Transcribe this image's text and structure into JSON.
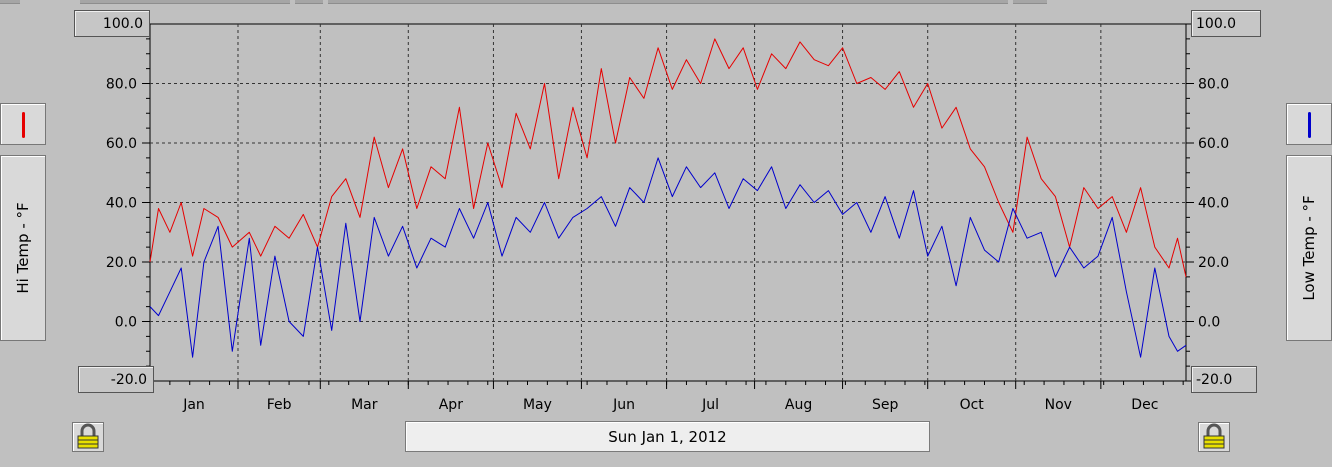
{
  "window": {
    "date_label": "Sun Jan 1, 2012"
  },
  "legend": {
    "left": {
      "label": "Hi Temp - °F",
      "color": "#e60000",
      "icon": "red-line-swatch"
    },
    "right": {
      "label": "Low Temp - °F",
      "color": "#0000cc",
      "icon": "blue-line-swatch"
    }
  },
  "icons": {
    "left_lock": "padlock-icon",
    "right_lock": "padlock-icon"
  },
  "chart_data": {
    "type": "line",
    "y_axis_left": {
      "ylim": [
        -20,
        100
      ],
      "ticks": [
        "100.0",
        "80.0",
        "60.0",
        "40.0",
        "20.0",
        "0.0",
        "-20.0"
      ]
    },
    "y_axis_right": {
      "ylim": [
        -20,
        100
      ],
      "ticks": [
        "100.0",
        "80.0",
        "60.0",
        "40.0",
        "20.0",
        "0.0",
        "-20.0"
      ]
    },
    "x_tick_labels": [
      "Jan",
      "Feb",
      "Mar",
      "Apr",
      "May",
      "Jun",
      "Jul",
      "Aug",
      "Sep",
      "Oct",
      "Nov",
      "Dec"
    ],
    "x_range_days": [
      1,
      366
    ],
    "grid": true,
    "series": [
      {
        "name": "Hi Temp - °F",
        "color": "#e60000",
        "x": [
          1,
          4,
          8,
          12,
          16,
          20,
          25,
          30,
          36,
          40,
          45,
          50,
          55,
          60,
          65,
          70,
          75,
          80,
          85,
          90,
          95,
          100,
          105,
          110,
          115,
          120,
          125,
          130,
          135,
          140,
          145,
          150,
          155,
          160,
          165,
          170,
          175,
          180,
          185,
          190,
          195,
          200,
          205,
          210,
          215,
          220,
          225,
          230,
          235,
          240,
          245,
          250,
          255,
          260,
          265,
          270,
          275,
          280,
          285,
          290,
          295,
          300,
          305,
          310,
          315,
          320,
          325,
          330,
          335,
          340,
          345,
          350,
          355,
          360,
          363,
          366
        ],
        "y": [
          20,
          38,
          30,
          40,
          22,
          38,
          35,
          25,
          30,
          22,
          32,
          28,
          36,
          25,
          42,
          48,
          35,
          62,
          45,
          58,
          38,
          52,
          48,
          72,
          38,
          60,
          45,
          70,
          58,
          80,
          48,
          72,
          55,
          85,
          60,
          82,
          75,
          92,
          78,
          88,
          80,
          95,
          85,
          92,
          78,
          90,
          85,
          94,
          88,
          86,
          92,
          80,
          82,
          78,
          84,
          72,
          80,
          65,
          72,
          58,
          52,
          40,
          30,
          62,
          48,
          42,
          25,
          45,
          38,
          42,
          30,
          45,
          25,
          18,
          28,
          15
        ]
      },
      {
        "name": "Low Temp - °F",
        "color": "#0000cc",
        "x": [
          1,
          4,
          8,
          12,
          16,
          20,
          25,
          30,
          36,
          40,
          45,
          50,
          55,
          60,
          65,
          70,
          75,
          80,
          85,
          90,
          95,
          100,
          105,
          110,
          115,
          120,
          125,
          130,
          135,
          140,
          145,
          150,
          155,
          160,
          165,
          170,
          175,
          180,
          185,
          190,
          195,
          200,
          205,
          210,
          215,
          220,
          225,
          230,
          235,
          240,
          245,
          250,
          255,
          260,
          265,
          270,
          275,
          280,
          285,
          290,
          295,
          300,
          305,
          310,
          315,
          320,
          325,
          330,
          335,
          340,
          345,
          350,
          355,
          360,
          363,
          366
        ],
        "y": [
          5,
          2,
          10,
          18,
          -12,
          20,
          32,
          -10,
          28,
          -8,
          22,
          0,
          -5,
          25,
          -3,
          33,
          0,
          35,
          22,
          32,
          18,
          28,
          25,
          38,
          28,
          40,
          22,
          35,
          30,
          40,
          28,
          35,
          38,
          42,
          32,
          45,
          40,
          55,
          42,
          52,
          45,
          50,
          38,
          48,
          44,
          52,
          38,
          46,
          40,
          44,
          36,
          40,
          30,
          42,
          28,
          44,
          22,
          32,
          12,
          35,
          24,
          20,
          38,
          28,
          30,
          15,
          25,
          18,
          22,
          35,
          10,
          -12,
          18,
          -5,
          -10,
          -8
        ]
      }
    ]
  }
}
